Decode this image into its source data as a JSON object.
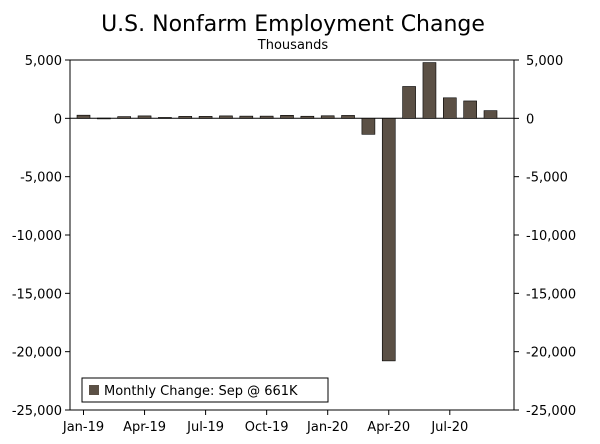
{
  "chart_data": {
    "type": "bar",
    "title": "U.S. Nonfarm Employment Change",
    "subtitle": "Thousands",
    "ylim": [
      -25000,
      5000
    ],
    "y_ticks": [
      5000,
      0,
      -5000,
      -10000,
      -15000,
      -20000,
      -25000
    ],
    "y_tick_labels": [
      "5,000",
      "0",
      "-5,000",
      "-10,000",
      "-15,000",
      "-20,000",
      "-25,000"
    ],
    "x_tick_labels": [
      "Jan-19",
      "Apr-19",
      "Jul-19",
      "Oct-19",
      "Jan-20",
      "Apr-20",
      "Jul-20"
    ],
    "x_tick_label_indices": [
      0,
      3,
      6,
      9,
      12,
      15,
      18
    ],
    "categories": [
      "Jan-19",
      "Feb-19",
      "Mar-19",
      "Apr-19",
      "May-19",
      "Jun-19",
      "Jul-19",
      "Aug-19",
      "Sep-19",
      "Oct-19",
      "Nov-19",
      "Dec-19",
      "Jan-20",
      "Feb-20",
      "Mar-20",
      "Apr-20",
      "May-20",
      "Jun-20",
      "Jul-20",
      "Aug-20",
      "Sep-20"
    ],
    "series": [
      {
        "name": "Monthly Change: Sep @ 661K",
        "color": "#5b5045",
        "values": [
          270,
          20,
          150,
          210,
          80,
          170,
          170,
          210,
          190,
          190,
          260,
          180,
          220,
          250,
          -1370,
          -20790,
          2730,
          4780,
          1760,
          1490,
          661
        ]
      }
    ],
    "grid": false,
    "legend_position": "bottom-left",
    "dual_y_axis": true
  }
}
